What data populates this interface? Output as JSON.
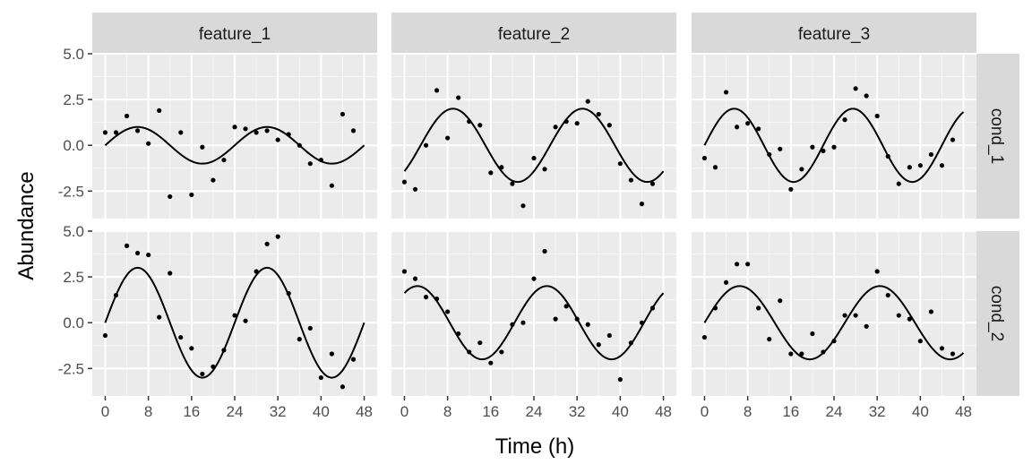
{
  "chart_data": {
    "type": "scatter",
    "title": "",
    "xlabel": "Time (h)",
    "ylabel": "Abundance",
    "xlim": [
      -2.4,
      50.4
    ],
    "ylim": [
      -4.0,
      5.0
    ],
    "x_ticks": [
      0,
      8,
      16,
      24,
      32,
      40,
      48
    ],
    "x_tick_labels": [
      "0",
      "8",
      "16",
      "24",
      "32",
      "40",
      "48"
    ],
    "y_ticks": [
      -2.5,
      0.0,
      2.5,
      5.0
    ],
    "y_tick_labels": [
      "-2.5",
      "0.0",
      "2.5",
      "5.0"
    ],
    "grid": true,
    "columns": [
      "feature_1",
      "feature_2",
      "feature_3"
    ],
    "rows": [
      "cond_1",
      "cond_2"
    ],
    "panels": [
      {
        "column": "feature_1",
        "row": "cond_1",
        "fit": {
          "amplitude": 1.0,
          "period": 24,
          "peak_time": 6
        },
        "points": [
          [
            0,
            0.7
          ],
          [
            2,
            0.7
          ],
          [
            4,
            1.6
          ],
          [
            6,
            0.8
          ],
          [
            8,
            0.1
          ],
          [
            10,
            1.9
          ],
          [
            12,
            -2.8
          ],
          [
            14,
            0.7
          ],
          [
            16,
            -2.7
          ],
          [
            18,
            -0.1
          ],
          [
            20,
            -1.9
          ],
          [
            22,
            -0.8
          ],
          [
            24,
            1.0
          ],
          [
            26,
            0.9
          ],
          [
            28,
            0.7
          ],
          [
            30,
            0.8
          ],
          [
            32,
            0.3
          ],
          [
            34,
            0.6
          ],
          [
            36,
            0.0
          ],
          [
            38,
            -1.0
          ],
          [
            40,
            -0.8
          ],
          [
            42,
            -2.2
          ],
          [
            44,
            1.7
          ],
          [
            46,
            0.8
          ]
        ]
      },
      {
        "column": "feature_2",
        "row": "cond_1",
        "fit": {
          "amplitude": 2.0,
          "period": 24,
          "peak_time": 9
        },
        "points": [
          [
            0,
            -2.0
          ],
          [
            2,
            -2.4
          ],
          [
            4,
            0.0
          ],
          [
            6,
            3.0
          ],
          [
            8,
            0.4
          ],
          [
            10,
            2.6
          ],
          [
            12,
            1.3
          ],
          [
            14,
            1.1
          ],
          [
            16,
            -1.5
          ],
          [
            18,
            -1.2
          ],
          [
            20,
            -2.1
          ],
          [
            22,
            -3.3
          ],
          [
            24,
            -0.7
          ],
          [
            26,
            -1.3
          ],
          [
            28,
            1.0
          ],
          [
            30,
            1.3
          ],
          [
            32,
            1.2
          ],
          [
            34,
            2.4
          ],
          [
            36,
            1.7
          ],
          [
            38,
            1.1
          ],
          [
            40,
            -1.0
          ],
          [
            42,
            -1.9
          ],
          [
            44,
            -3.2
          ],
          [
            46,
            -2.1
          ]
        ]
      },
      {
        "column": "feature_3",
        "row": "cond_1",
        "fit": {
          "amplitude": 2.0,
          "period": 22,
          "peak_time": 5.5
        },
        "points": [
          [
            0,
            -0.7
          ],
          [
            2,
            -1.2
          ],
          [
            4,
            2.9
          ],
          [
            6,
            1.0
          ],
          [
            8,
            1.2
          ],
          [
            10,
            0.9
          ],
          [
            12,
            -0.5
          ],
          [
            14,
            -0.2
          ],
          [
            16,
            -2.4
          ],
          [
            18,
            -1.3
          ],
          [
            20,
            -0.1
          ],
          [
            22,
            -0.3
          ],
          [
            24,
            -0.1
          ],
          [
            26,
            1.4
          ],
          [
            28,
            3.1
          ],
          [
            30,
            2.7
          ],
          [
            32,
            1.6
          ],
          [
            34,
            -0.6
          ],
          [
            36,
            -2.1
          ],
          [
            38,
            -1.2
          ],
          [
            40,
            -1.1
          ],
          [
            42,
            -0.5
          ],
          [
            44,
            -1.1
          ],
          [
            46,
            0.3
          ]
        ]
      },
      {
        "column": "feature_1",
        "row": "cond_2",
        "fit": {
          "amplitude": 3.0,
          "period": 24,
          "peak_time": 6
        },
        "points": [
          [
            0,
            -0.7
          ],
          [
            2,
            1.5
          ],
          [
            4,
            4.2
          ],
          [
            6,
            3.8
          ],
          [
            8,
            3.7
          ],
          [
            10,
            0.3
          ],
          [
            12,
            2.7
          ],
          [
            14,
            -0.8
          ],
          [
            16,
            -1.4
          ],
          [
            18,
            -2.8
          ],
          [
            20,
            -2.4
          ],
          [
            22,
            -1.5
          ],
          [
            24,
            0.4
          ],
          [
            26,
            0.1
          ],
          [
            28,
            2.8
          ],
          [
            30,
            4.3
          ],
          [
            32,
            4.7
          ],
          [
            34,
            1.6
          ],
          [
            36,
            -0.9
          ],
          [
            38,
            -0.3
          ],
          [
            40,
            -3.0
          ],
          [
            42,
            -1.7
          ],
          [
            44,
            -3.5
          ],
          [
            46,
            -2.0
          ]
        ]
      },
      {
        "column": "feature_2",
        "row": "cond_2",
        "fit": {
          "amplitude": 2.0,
          "period": 24,
          "peak_time": 2.4
        },
        "points": [
          [
            0,
            2.8
          ],
          [
            2,
            2.4
          ],
          [
            4,
            1.4
          ],
          [
            6,
            1.3
          ],
          [
            8,
            0.6
          ],
          [
            10,
            -0.6
          ],
          [
            12,
            -1.6
          ],
          [
            14,
            -1.1
          ],
          [
            16,
            -2.2
          ],
          [
            18,
            -1.6
          ],
          [
            20,
            -0.1
          ],
          [
            22,
            0.0
          ],
          [
            24,
            2.4
          ],
          [
            26,
            3.9
          ],
          [
            28,
            0.2
          ],
          [
            30,
            0.9
          ],
          [
            32,
            0.2
          ],
          [
            34,
            -0.1
          ],
          [
            36,
            -1.2
          ],
          [
            38,
            -0.7
          ],
          [
            40,
            -3.1
          ],
          [
            42,
            -1.1
          ],
          [
            44,
            0.0
          ],
          [
            46,
            0.8
          ]
        ]
      },
      {
        "column": "feature_3",
        "row": "cond_2",
        "fit": {
          "amplitude": 2.0,
          "period": 26,
          "peak_time": 6.5
        },
        "points": [
          [
            0,
            -0.8
          ],
          [
            2,
            0.8
          ],
          [
            4,
            2.2
          ],
          [
            6,
            3.2
          ],
          [
            8,
            3.2
          ],
          [
            10,
            0.8
          ],
          [
            12,
            -0.9
          ],
          [
            14,
            1.2
          ],
          [
            16,
            -1.7
          ],
          [
            18,
            -1.7
          ],
          [
            20,
            -0.6
          ],
          [
            22,
            -1.6
          ],
          [
            24,
            -1.0
          ],
          [
            26,
            0.4
          ],
          [
            28,
            0.4
          ],
          [
            30,
            -0.2
          ],
          [
            32,
            2.8
          ],
          [
            34,
            1.5
          ],
          [
            36,
            0.4
          ],
          [
            38,
            0.2
          ],
          [
            40,
            -1.0
          ],
          [
            42,
            0.6
          ],
          [
            44,
            -1.4
          ],
          [
            46,
            -1.7
          ]
        ]
      }
    ]
  }
}
